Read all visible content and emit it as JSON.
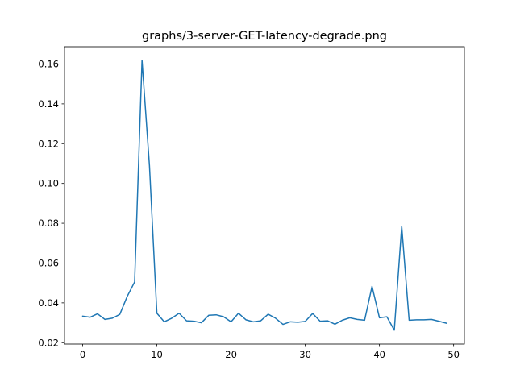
{
  "chart_data": {
    "type": "line",
    "title": "graphs/3-server-GET-latency-degrade.png",
    "xlabel": "",
    "ylabel": "",
    "xlim": [
      -2.45,
      51.45
    ],
    "ylim": [
      0.0193,
      0.1687
    ],
    "x_ticks": [
      0,
      10,
      20,
      30,
      40,
      50
    ],
    "x_tick_labels": [
      "0",
      "10",
      "20",
      "30",
      "40",
      "50"
    ],
    "y_ticks": [
      0.02,
      0.04,
      0.06,
      0.08,
      0.1,
      0.12,
      0.14,
      0.16
    ],
    "y_tick_labels": [
      "0.02",
      "0.04",
      "0.06",
      "0.08",
      "0.10",
      "0.12",
      "0.14",
      "0.16"
    ],
    "grid": false,
    "legend": "none",
    "series": [
      {
        "color": "#1f77b4",
        "x": [
          0,
          1,
          2,
          3,
          4,
          5,
          6,
          7,
          8,
          9,
          10,
          11,
          12,
          13,
          14,
          15,
          16,
          17,
          18,
          19,
          20,
          21,
          22,
          23,
          24,
          25,
          26,
          27,
          28,
          29,
          30,
          31,
          32,
          33,
          34,
          35,
          36,
          37,
          38,
          39,
          40,
          41,
          42,
          43,
          44,
          45,
          46,
          47,
          48,
          49
        ],
        "values": [
          0.0333,
          0.0328,
          0.0345,
          0.0317,
          0.0323,
          0.0342,
          0.0432,
          0.0505,
          0.1618,
          0.109,
          0.0348,
          0.0305,
          0.0323,
          0.0348,
          0.031,
          0.0308,
          0.03,
          0.0338,
          0.034,
          0.033,
          0.0305,
          0.0348,
          0.0315,
          0.0305,
          0.031,
          0.0343,
          0.0323,
          0.0292,
          0.0305,
          0.0303,
          0.0307,
          0.0347,
          0.0308,
          0.031,
          0.0293,
          0.0313,
          0.0325,
          0.0317,
          0.0313,
          0.0483,
          0.0325,
          0.033,
          0.0263,
          0.0785,
          0.0313,
          0.0315,
          0.0315,
          0.0317,
          0.0308,
          0.0298
        ]
      }
    ]
  }
}
